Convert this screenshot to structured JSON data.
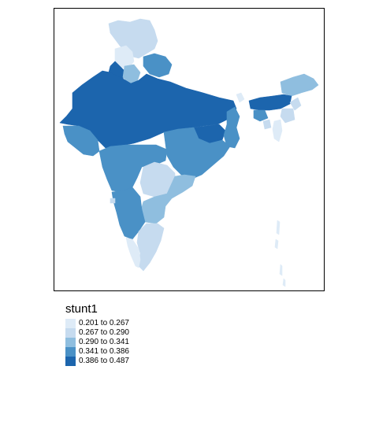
{
  "legend": {
    "title": "stunt1",
    "classes": [
      {
        "label": "0.201 to 0.267",
        "color": "#deebf7"
      },
      {
        "label": "0.267 to 0.290",
        "color": "#c6dbef"
      },
      {
        "label": "0.290 to 0.341",
        "color": "#8fbedf"
      },
      {
        "label": "0.341 to 0.386",
        "color": "#4a91c6"
      },
      {
        "label": "0.386 to 0.487",
        "color": "#1c65ad"
      }
    ]
  },
  "regions": [
    {
      "id": "jammu-kashmir",
      "class": 1
    },
    {
      "id": "himachal",
      "class": 0
    },
    {
      "id": "punjab",
      "class": 4
    },
    {
      "id": "uttarakhand",
      "class": 3
    },
    {
      "id": "haryana",
      "class": 2
    },
    {
      "id": "rajasthan-up-mp-bihar",
      "class": 4
    },
    {
      "id": "gujarat",
      "class": 3
    },
    {
      "id": "jharkhand",
      "class": 4
    },
    {
      "id": "west-bengal",
      "class": 3
    },
    {
      "id": "maharashtra",
      "class": 3
    },
    {
      "id": "chhattisgarh-odisha",
      "class": 3
    },
    {
      "id": "telangana",
      "class": 1
    },
    {
      "id": "andhra",
      "class": 2
    },
    {
      "id": "karnataka",
      "class": 3
    },
    {
      "id": "goa",
      "class": 1
    },
    {
      "id": "tamil-nadu",
      "class": 1
    },
    {
      "id": "kerala",
      "class": 0
    },
    {
      "id": "sikkim",
      "class": 0
    },
    {
      "id": "arunachal",
      "class": 2
    },
    {
      "id": "assam",
      "class": 4
    },
    {
      "id": "meghalaya",
      "class": 3
    },
    {
      "id": "nagaland",
      "class": 1
    },
    {
      "id": "manipur",
      "class": 1
    },
    {
      "id": "mizoram",
      "class": 0
    },
    {
      "id": "tripura",
      "class": 1
    },
    {
      "id": "andaman",
      "class": 0
    }
  ]
}
